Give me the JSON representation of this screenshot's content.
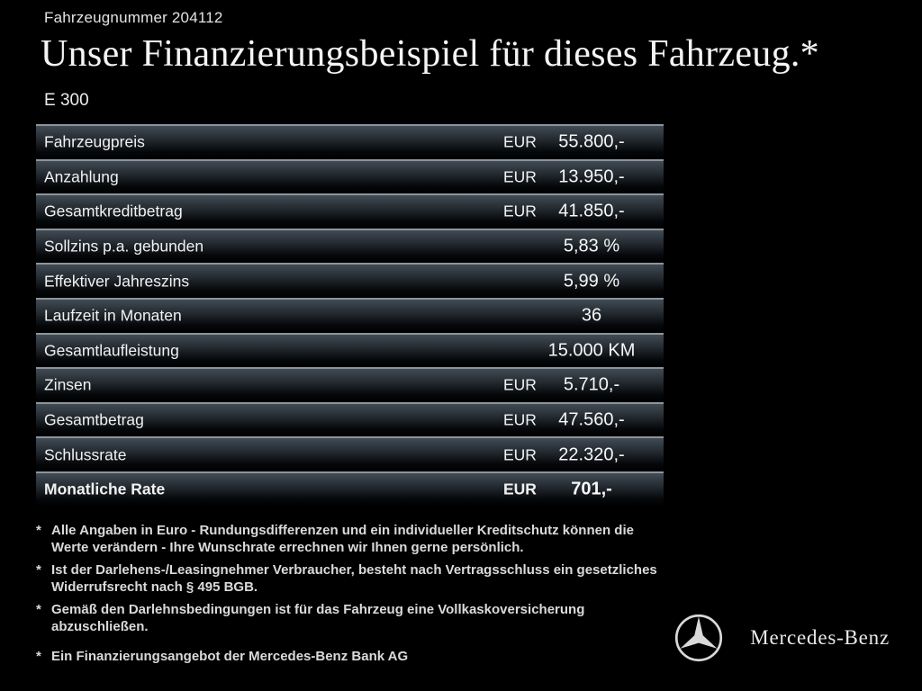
{
  "header": {
    "vehicle_number": "Fahrzeugnummer 204112",
    "title": "Unser Finanzierungsbeispiel für dieses Fahrzeug.*",
    "model": "E 300"
  },
  "table": {
    "rows": [
      {
        "label": "Fahrzeugpreis",
        "currency": "EUR",
        "value": "55.800,-",
        "bold": false
      },
      {
        "label": "Anzahlung",
        "currency": "EUR",
        "value": "13.950,-",
        "bold": false
      },
      {
        "label": "Gesamtkreditbetrag",
        "currency": "EUR",
        "value": "41.850,-",
        "bold": false
      },
      {
        "label": "Sollzins p.a. gebunden",
        "currency": "",
        "value": "5,83 %",
        "bold": false
      },
      {
        "label": "Effektiver Jahreszins",
        "currency": "",
        "value": "5,99 %",
        "bold": false
      },
      {
        "label": "Laufzeit in Monaten",
        "currency": "",
        "value": "36",
        "bold": false
      },
      {
        "label": "Gesamtlaufleistung",
        "currency": "",
        "value": "15.000 KM",
        "bold": false
      },
      {
        "label": "Zinsen",
        "currency": "EUR",
        "value": "5.710,-",
        "bold": false
      },
      {
        "label": "Gesamtbetrag",
        "currency": "EUR",
        "value": "47.560,-",
        "bold": false
      },
      {
        "label": "Schlussrate",
        "currency": "EUR",
        "value": "22.320,-",
        "bold": false
      },
      {
        "label": "Monatliche Rate",
        "currency": "EUR",
        "value": "701,-",
        "bold": true
      }
    ]
  },
  "footnotes": [
    {
      "marker": "*",
      "text": "Alle Angaben in Euro - Rundungsdifferenzen und ein individueller Kreditschutz können die Werte verändern - Ihre Wunschrate errechnen wir Ihnen gerne persönlich.",
      "last": false
    },
    {
      "marker": "*",
      "text": "Ist der Darlehens-/Leasingnehmer Verbraucher, besteht nach Vertragsschluss ein gesetzliches Widerrufsrecht nach § 495 BGB.",
      "last": false
    },
    {
      "marker": "*",
      "text": "Gemäß den Darlehnsbedingungen ist für das Fahrzeug eine Vollkaskoversicherung abzuschließen.",
      "last": false
    },
    {
      "marker": "*",
      "text": "Ein Finanzierungsangebot der Mercedes-Benz Bank AG",
      "last": true
    }
  ],
  "brand": {
    "name": "Mercedes-Benz",
    "logo_icon": "mercedes-star-icon",
    "colors": {
      "background": "#000000",
      "text": "#ededed",
      "row_gradient_top": "#424b54",
      "row_border": "#8d959c"
    }
  }
}
